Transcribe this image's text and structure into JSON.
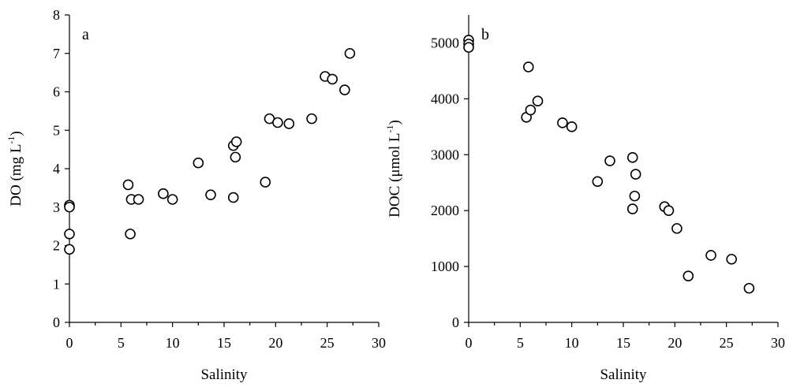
{
  "chart_data": [
    {
      "type": "scatter",
      "panel_label": "a",
      "xlabel": "Salinity",
      "ylabel_main": "DO (mg L",
      "ylabel_sup": "-1",
      "ylabel_end": ")",
      "xlim": [
        0,
        30
      ],
      "ylim": [
        0,
        8
      ],
      "xticks": [
        0,
        5,
        10,
        15,
        20,
        25,
        30
      ],
      "yticks": [
        0,
        1,
        2,
        3,
        4,
        5,
        6,
        7,
        8
      ],
      "marker_color": "#000000",
      "points": [
        [
          0.0,
          3.05
        ],
        [
          0.0,
          3.0
        ],
        [
          0.0,
          2.3
        ],
        [
          0.0,
          1.9
        ],
        [
          5.7,
          3.58
        ],
        [
          5.9,
          2.3
        ],
        [
          6.0,
          3.2
        ],
        [
          6.7,
          3.2
        ],
        [
          9.1,
          3.35
        ],
        [
          10.0,
          3.2
        ],
        [
          12.5,
          4.15
        ],
        [
          13.7,
          3.32
        ],
        [
          15.9,
          4.6
        ],
        [
          15.9,
          3.25
        ],
        [
          16.1,
          4.3
        ],
        [
          16.2,
          4.7
        ],
        [
          19.0,
          3.65
        ],
        [
          19.4,
          5.3
        ],
        [
          20.2,
          5.2
        ],
        [
          21.3,
          5.17
        ],
        [
          23.5,
          5.3
        ],
        [
          24.8,
          6.4
        ],
        [
          25.5,
          6.33
        ],
        [
          26.7,
          6.05
        ],
        [
          27.2,
          7.0
        ]
      ]
    },
    {
      "type": "scatter",
      "panel_label": "b",
      "xlabel": "Salinity",
      "ylabel_main": "DOC (μmol L",
      "ylabel_sup": "-1",
      "ylabel_end": ")",
      "xlim": [
        0,
        30
      ],
      "ylim": [
        0,
        5500
      ],
      "xticks": [
        0,
        5,
        10,
        15,
        20,
        25,
        30
      ],
      "yticks": [
        0,
        1000,
        2000,
        3000,
        4000,
        5000
      ],
      "marker_color": "#000000",
      "points": [
        [
          0.0,
          5050
        ],
        [
          0.0,
          4980
        ],
        [
          0.0,
          4920
        ],
        [
          5.6,
          3670
        ],
        [
          5.8,
          4570
        ],
        [
          6.0,
          3800
        ],
        [
          6.7,
          3960
        ],
        [
          9.1,
          3570
        ],
        [
          10.0,
          3500
        ],
        [
          12.5,
          2520
        ],
        [
          13.7,
          2890
        ],
        [
          15.9,
          2950
        ],
        [
          15.9,
          2030
        ],
        [
          16.1,
          2260
        ],
        [
          16.2,
          2650
        ],
        [
          19.0,
          2070
        ],
        [
          19.4,
          2000
        ],
        [
          20.2,
          1680
        ],
        [
          21.3,
          830
        ],
        [
          23.5,
          1200
        ],
        [
          25.5,
          1130
        ],
        [
          27.2,
          610
        ]
      ]
    }
  ]
}
